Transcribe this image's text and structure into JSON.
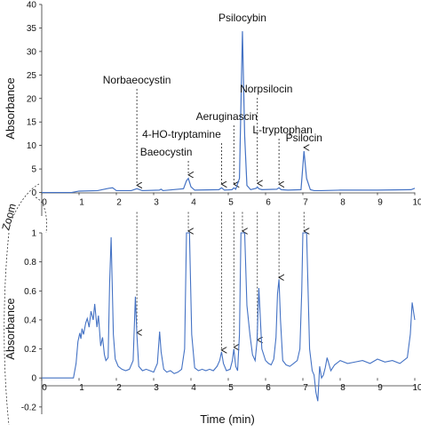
{
  "chart_data": [
    {
      "type": "line",
      "panel": "full-scale chromatogram",
      "title": "",
      "xlabel": "",
      "ylabel": "Absorbance",
      "xlim": [
        0,
        10
      ],
      "ylim": [
        -5,
        40
      ],
      "x_ticks": [
        0,
        1,
        2,
        3,
        4,
        5,
        6,
        7,
        8,
        9,
        10
      ],
      "y_ticks": [
        0,
        5,
        10,
        15,
        20,
        25,
        30,
        35,
        40
      ],
      "grid": false,
      "series": [
        {
          "color": "#4472c4",
          "x": [
            0.0,
            0.8,
            1.0,
            1.5,
            1.8,
            1.9,
            2.0,
            2.4,
            2.55,
            2.7,
            3.15,
            3.2,
            3.25,
            3.8,
            3.88,
            3.93,
            4.0,
            4.1,
            4.75,
            4.82,
            4.9,
            5.1,
            5.15,
            5.2,
            5.3,
            5.38,
            5.44,
            5.5,
            5.6,
            5.75,
            5.78,
            5.82,
            5.9,
            6.3,
            6.36,
            6.42,
            6.6,
            6.95,
            7.03,
            7.1,
            7.2,
            7.3,
            7.5,
            8.0,
            9.0,
            9.9,
            10.0
          ],
          "y": [
            0.0,
            0.0,
            0.3,
            0.4,
            0.9,
            1.0,
            0.4,
            0.4,
            0.8,
            0.4,
            0.5,
            0.7,
            0.4,
            0.8,
            2.5,
            3.0,
            1.2,
            0.5,
            0.6,
            1.0,
            0.5,
            0.6,
            1.0,
            0.7,
            3.0,
            34.3,
            12.0,
            1.5,
            0.6,
            0.9,
            1.2,
            0.8,
            0.6,
            0.7,
            1.0,
            0.6,
            0.5,
            0.6,
            8.8,
            3.0,
            0.6,
            0.4,
            0.4,
            0.5,
            0.5,
            0.6,
            0.9
          ]
        }
      ],
      "annotations": [
        {
          "label": "Psilocybin",
          "x": 5.38
        },
        {
          "label": "Norbaeocystin",
          "x": 2.55
        },
        {
          "label": "Norpsilocin",
          "x": 5.78
        },
        {
          "label": "Aeruginascin",
          "x": 5.15
        },
        {
          "label": "L-tryptophan",
          "x": 6.36
        },
        {
          "label": "4-HO-tryptamine",
          "x": 4.82
        },
        {
          "label": "Psilocin",
          "x": 7.03
        },
        {
          "label": "Baeocystin",
          "x": 3.93
        }
      ]
    },
    {
      "type": "line",
      "panel": "zoomed chromatogram",
      "title": "",
      "xlabel": "Time (min)",
      "ylabel": "Absorbance",
      "xlim": [
        0,
        10
      ],
      "ylim": [
        -0.25,
        1
      ],
      "x_ticks": [
        0,
        1,
        2,
        3,
        4,
        5,
        6,
        7,
        8,
        9,
        10
      ],
      "y_ticks": [
        -0.2,
        0,
        0.2,
        0.4,
        0.6,
        0.8,
        1
      ],
      "y_tick_labels": [
        "-0.2",
        "0",
        "0.2",
        "0.4",
        "0.6",
        "0.8",
        "1"
      ],
      "grid": false,
      "series": [
        {
          "color": "#4472c4",
          "x": [
            0.0,
            0.5,
            0.85,
            0.92,
            0.97,
            1.02,
            1.05,
            1.08,
            1.12,
            1.18,
            1.22,
            1.27,
            1.32,
            1.38,
            1.42,
            1.48,
            1.52,
            1.58,
            1.63,
            1.68,
            1.72,
            1.78,
            1.82,
            1.86,
            1.92,
            1.97,
            2.05,
            2.15,
            2.25,
            2.35,
            2.45,
            2.51,
            2.55,
            2.6,
            2.7,
            2.8,
            2.9,
            3.0,
            3.1,
            3.16,
            3.2,
            3.27,
            3.35,
            3.45,
            3.55,
            3.65,
            3.75,
            3.83,
            3.88,
            3.91,
            3.96,
            4.02,
            4.1,
            4.2,
            4.3,
            4.4,
            4.5,
            4.6,
            4.7,
            4.77,
            4.82,
            4.87,
            4.95,
            5.05,
            5.11,
            5.15,
            5.2,
            5.25,
            5.3,
            5.34,
            5.44,
            5.5,
            5.58,
            5.65,
            5.72,
            5.77,
            5.82,
            5.9,
            6.0,
            6.08,
            6.15,
            6.22,
            6.28,
            6.32,
            6.36,
            6.4,
            6.46,
            6.55,
            6.65,
            6.75,
            6.85,
            6.92,
            6.97,
            7.0,
            7.1,
            7.18,
            7.25,
            7.3,
            7.35,
            7.4,
            7.45,
            7.5,
            7.55,
            7.6,
            7.65,
            7.75,
            7.85,
            8.0,
            8.2,
            8.4,
            8.6,
            8.8,
            9.0,
            9.2,
            9.4,
            9.6,
            9.8,
            9.88,
            9.93,
            9.97,
            10.0
          ],
          "y": [
            0.0,
            0.0,
            0.0,
            0.1,
            0.25,
            0.31,
            0.27,
            0.34,
            0.3,
            0.38,
            0.41,
            0.35,
            0.46,
            0.4,
            0.51,
            0.35,
            0.43,
            0.22,
            0.28,
            0.16,
            0.12,
            0.14,
            0.66,
            0.97,
            0.3,
            0.13,
            0.08,
            0.06,
            0.05,
            0.06,
            0.12,
            0.56,
            0.3,
            0.08,
            0.05,
            0.06,
            0.05,
            0.04,
            0.1,
            0.32,
            0.18,
            0.06,
            0.04,
            0.05,
            0.03,
            0.04,
            0.06,
            0.2,
            1.0,
            1.0,
            1.0,
            0.3,
            0.07,
            0.05,
            0.06,
            0.05,
            0.06,
            0.05,
            0.08,
            0.12,
            0.18,
            0.1,
            0.05,
            0.06,
            0.12,
            0.2,
            0.08,
            0.05,
            0.3,
            1.0,
            1.0,
            0.5,
            0.3,
            0.16,
            0.12,
            0.25,
            0.62,
            0.2,
            0.12,
            0.1,
            0.09,
            0.13,
            0.28,
            0.58,
            0.68,
            0.4,
            0.12,
            0.09,
            0.08,
            0.1,
            0.12,
            0.2,
            0.6,
            1.0,
            1.0,
            0.2,
            0.05,
            0.02,
            -0.1,
            -0.16,
            0.08,
            0.0,
            0.02,
            0.07,
            0.14,
            0.05,
            0.09,
            0.12,
            0.1,
            0.11,
            0.12,
            0.1,
            0.13,
            0.11,
            0.12,
            0.1,
            0.14,
            0.3,
            0.52,
            0.45,
            0.4
          ]
        }
      ]
    }
  ],
  "zoom_label": "Zoom"
}
